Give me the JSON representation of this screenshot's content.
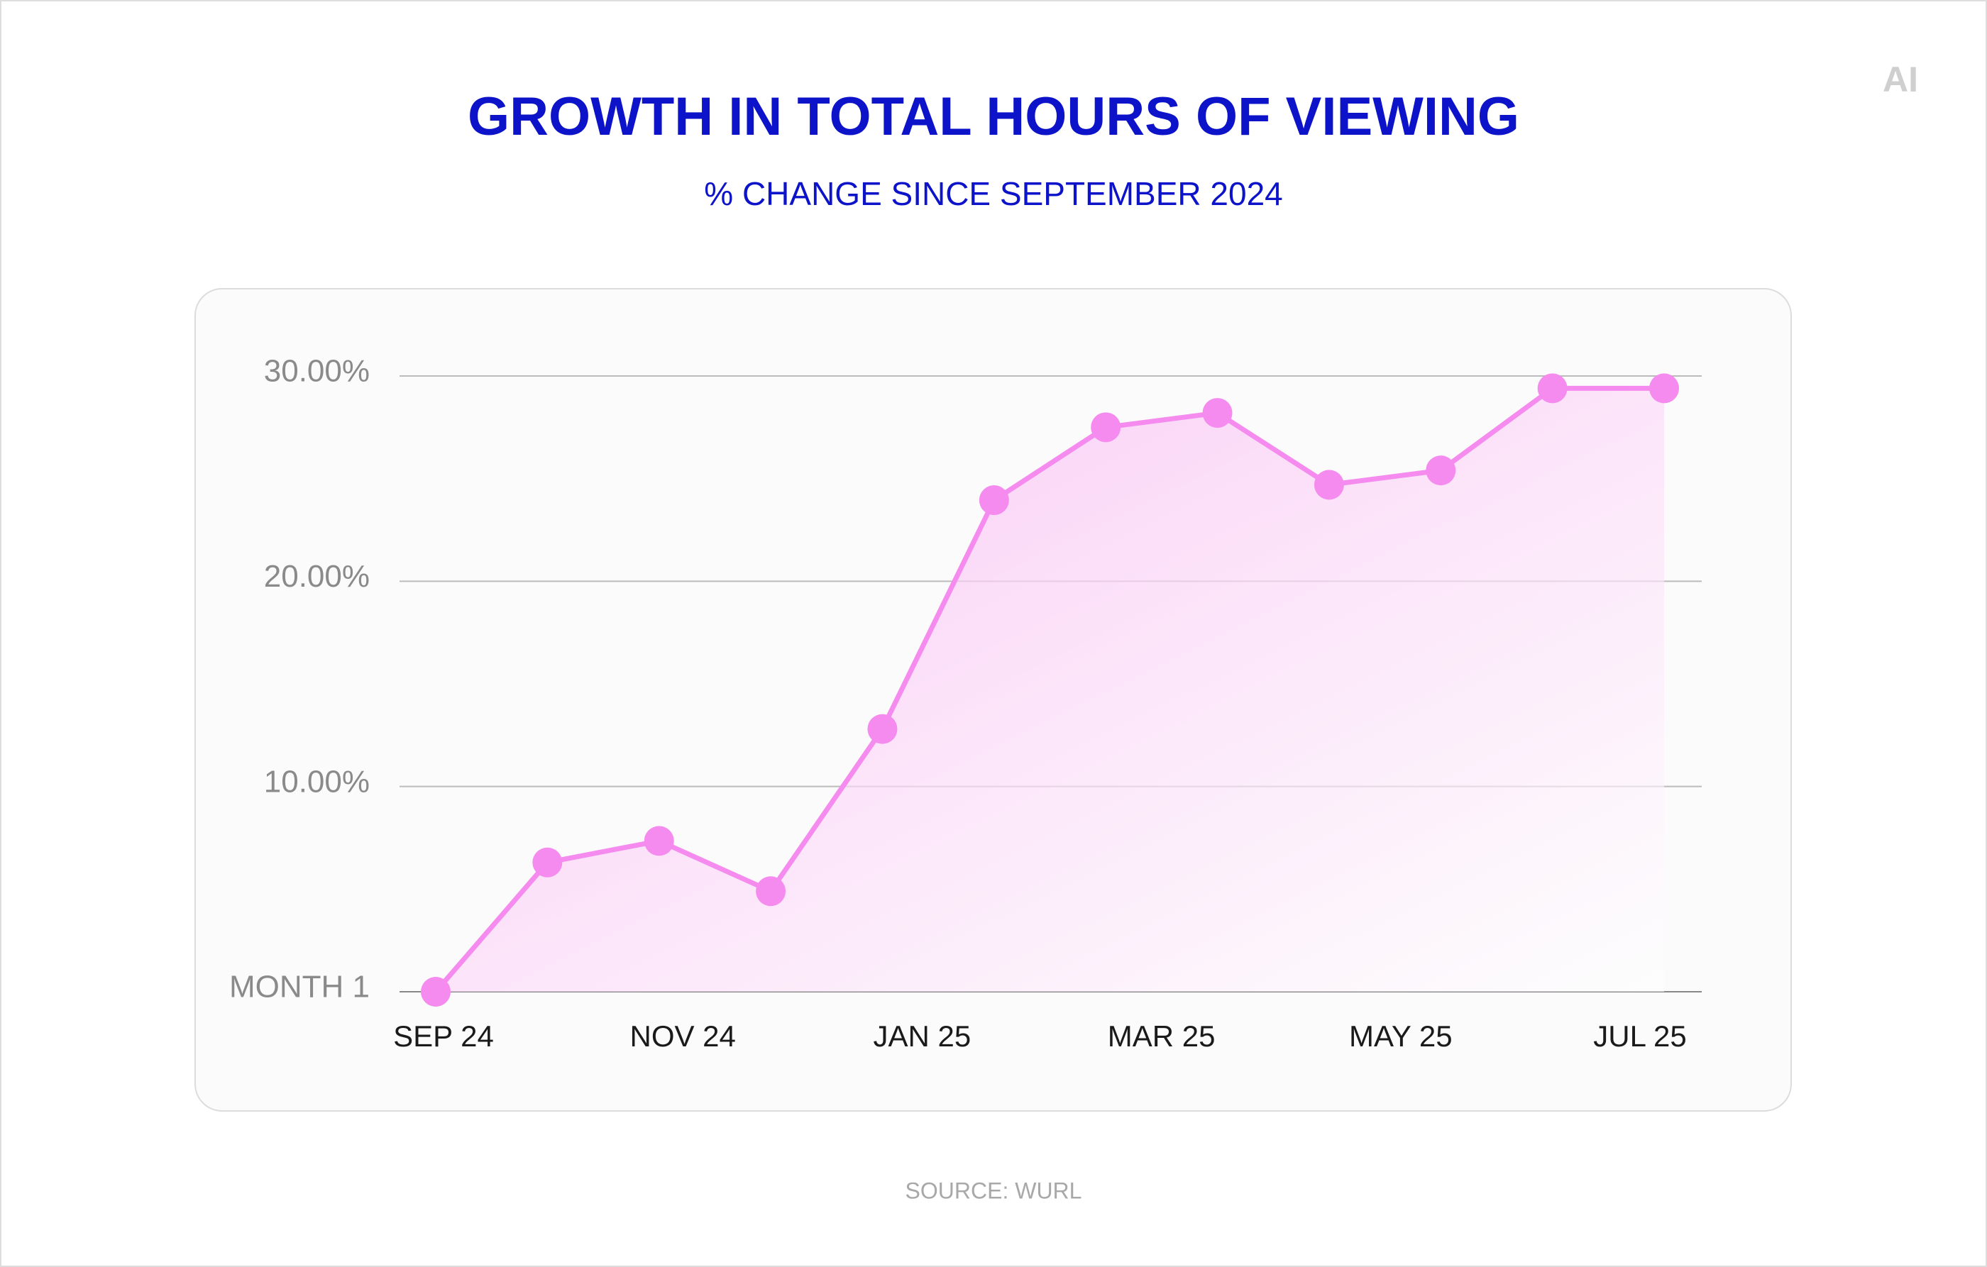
{
  "chart_data": {
    "type": "line",
    "title": "GROWTH IN TOTAL HOURS OF VIEWING",
    "subtitle": "% CHANGE SINCE SEPTEMBER 2024",
    "source": "SOURCE: WURL",
    "logo": "AI",
    "x_labels": [
      "SEP 24",
      "NOV 24",
      "JAN 25",
      "MAR 25",
      "MAY 25",
      "JUL 25"
    ],
    "values": [
      0,
      6.3,
      7.35,
      4.9,
      12.8,
      23.95,
      27.5,
      28.2,
      24.7,
      25.4,
      29.4,
      29.4
    ],
    "color": "#f58bef",
    "ylim": [
      0,
      30
    ],
    "yticks": [
      {
        "value": 0,
        "label": "MONTH 1"
      },
      {
        "value": 10,
        "label": "10.00%"
      },
      {
        "value": 20,
        "label": "20.00%"
      },
      {
        "value": 30,
        "label": "30.00%"
      }
    ],
    "grid": true
  }
}
